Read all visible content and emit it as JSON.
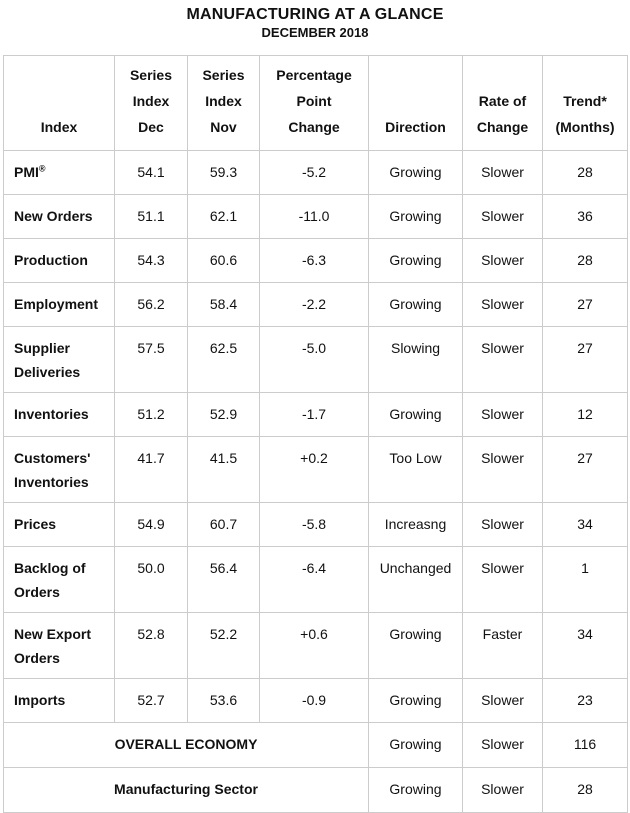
{
  "title": "MANUFACTURING AT A GLANCE",
  "subtitle": "DECEMBER 2018",
  "table": {
    "headers": [
      "Index",
      "Series\nIndex\nDec",
      "Series\nIndex\nNov",
      "Percentage\nPoint\nChange",
      "Direction",
      "Rate of\nChange",
      "Trend*\n(Months)"
    ],
    "rows": [
      {
        "label": "PMI",
        "label_sup": "®",
        "dec": "54.1",
        "nov": "59.3",
        "change": "-5.2",
        "direction": "Growing",
        "rate": "Slower",
        "trend": "28",
        "tall": false
      },
      {
        "label": "New Orders",
        "dec": "51.1",
        "nov": "62.1",
        "change": "-11.0",
        "direction": "Growing",
        "rate": "Slower",
        "trend": "36",
        "tall": false
      },
      {
        "label": "Production",
        "dec": "54.3",
        "nov": "60.6",
        "change": "-6.3",
        "direction": "Growing",
        "rate": "Slower",
        "trend": "28",
        "tall": false
      },
      {
        "label": "Employment",
        "dec": "56.2",
        "nov": "58.4",
        "change": "-2.2",
        "direction": "Growing",
        "rate": "Slower",
        "trend": "27",
        "tall": false
      },
      {
        "label": "Supplier Deliveries",
        "dec": "57.5",
        "nov": "62.5",
        "change": "-5.0",
        "direction": "Slowing",
        "rate": "Slower",
        "trend": "27",
        "tall": true
      },
      {
        "label": "Inventories",
        "dec": "51.2",
        "nov": "52.9",
        "change": "-1.7",
        "direction": "Growing",
        "rate": "Slower",
        "trend": "12",
        "tall": false
      },
      {
        "label": "Customers' Inventories",
        "dec": "41.7",
        "nov": "41.5",
        "change": "+0.2",
        "direction": "Too Low",
        "rate": "Slower",
        "trend": "27",
        "tall": true
      },
      {
        "label": "Prices",
        "dec": "54.9",
        "nov": "60.7",
        "change": "-5.8",
        "direction": "Increasng",
        "rate": "Slower",
        "trend": "34",
        "tall": false
      },
      {
        "label": "Backlog of Orders",
        "dec": "50.0",
        "nov": "56.4",
        "change": "-6.4",
        "direction": "Unchanged",
        "rate": "Slower",
        "trend": "1",
        "tall": true
      },
      {
        "label": "New Export Orders",
        "dec": "52.8",
        "nov": "52.2",
        "change": "+0.6",
        "direction": "Growing",
        "rate": "Faster",
        "trend": "34",
        "tall": true
      },
      {
        "label": "Imports",
        "dec": "52.7",
        "nov": "53.6",
        "change": "-0.9",
        "direction": "Growing",
        "rate": "Slower",
        "trend": "23",
        "tall": false
      }
    ],
    "summary_rows": [
      {
        "label": "OVERALL ECONOMY",
        "direction": "Growing",
        "rate": "Slower",
        "trend": "116"
      },
      {
        "label": "Manufacturing Sector",
        "direction": "Growing",
        "rate": "Slower",
        "trend": "28"
      }
    ]
  }
}
